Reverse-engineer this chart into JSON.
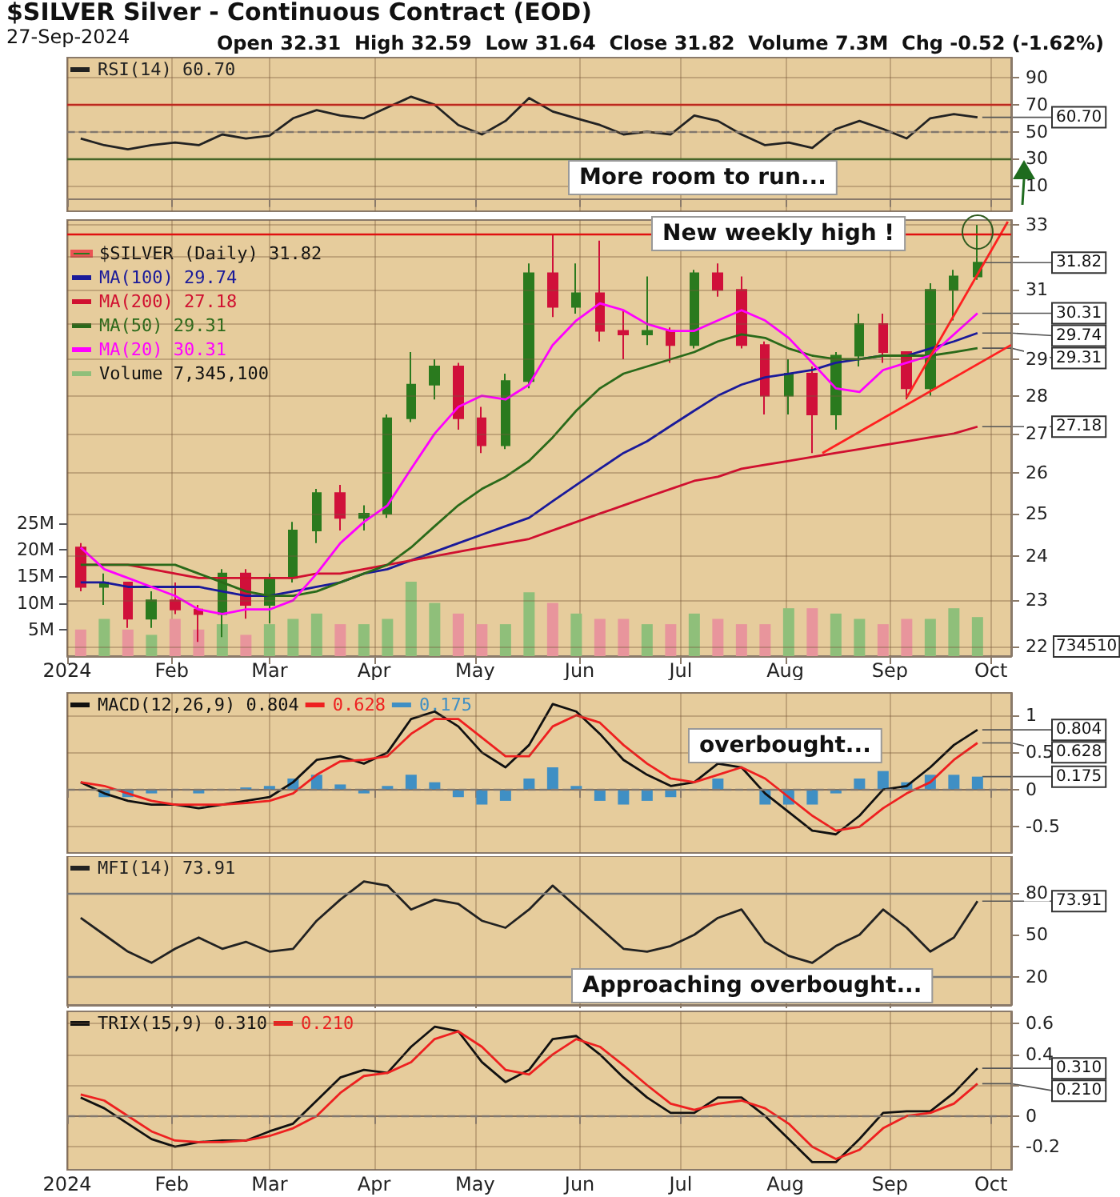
{
  "chart_data": [
    {
      "type": "line",
      "title": "$SILVER Silver - Continuous Contract (EOD)",
      "subtitle": "27-Sep-2024",
      "annotations": [
        "Open 32.31  High 32.59  Low 31.64  Close 31.82  Volume 7.3M  Chg -0.52 (-1.62%)",
        "More room to run...",
        {
          "text": "60.70",
          "x": "2024-09-27",
          "y": 60.7
        }
      ],
      "x": [
        "2024-01-05",
        "2024-01-12",
        "2024-01-19",
        "2024-01-26",
        "2024-02-02",
        "2024-02-09",
        "2024-02-16",
        "2024-02-23",
        "2024-03-01",
        "2024-03-08",
        "2024-03-15",
        "2024-03-22",
        "2024-03-29",
        "2024-04-05",
        "2024-04-12",
        "2024-04-19",
        "2024-04-26",
        "2024-05-03",
        "2024-05-10",
        "2024-05-17",
        "2024-05-24",
        "2024-05-31",
        "2024-06-07",
        "2024-06-14",
        "2024-06-21",
        "2024-06-28",
        "2024-07-05",
        "2024-07-12",
        "2024-07-19",
        "2024-07-26",
        "2024-08-02",
        "2024-08-09",
        "2024-08-16",
        "2024-08-23",
        "2024-08-30",
        "2024-09-06",
        "2024-09-13",
        "2024-09-20",
        "2024-09-27"
      ],
      "series": [
        {
          "name": "RSI(14) 60.70",
          "color": "#222222",
          "values": [
            45,
            40,
            37,
            40,
            42,
            40,
            48,
            45,
            47,
            60,
            66,
            62,
            60,
            68,
            76,
            70,
            55,
            48,
            58,
            75,
            65,
            60,
            55,
            48,
            50,
            48,
            62,
            58,
            48,
            40,
            42,
            38,
            52,
            58,
            52,
            45,
            60,
            63,
            60.7
          ]
        }
      ],
      "xlim": [
        "2024-01-01",
        "2024-10-07"
      ],
      "ylim": [
        -9,
        105
      ],
      "yticks": [
        10,
        30,
        50,
        70,
        90
      ],
      "xticks": [
        {
          "value": "2024-01-01",
          "label": null
        },
        {
          "value": "2024-02-01",
          "label": null
        },
        {
          "value": "2024-03-01",
          "label": null
        },
        {
          "value": "2024-04-01",
          "label": null
        },
        {
          "value": "2024-05-01",
          "label": null
        },
        {
          "value": "2024-06-01",
          "label": null
        },
        {
          "value": "2024-07-01",
          "label": null
        },
        {
          "value": "2024-08-01",
          "label": null
        },
        {
          "value": "2024-09-01",
          "label": null
        },
        {
          "value": "2024-10-01",
          "label": null
        }
      ],
      "ref_lines": [
        {
          "axis": "y",
          "value": 70,
          "color": "#e01010",
          "line_style": "solid"
        },
        {
          "axis": "y",
          "value": 50,
          "color": "#888888",
          "line_style": "dashed"
        },
        {
          "axis": "y",
          "value": 30,
          "color": "#2e6b1e",
          "line_style": "solid"
        }
      ],
      "grid": true,
      "legend": "top left",
      "tick_labels": "y"
    },
    {
      "type": "candlestick",
      "annotations": [
        "New weekly high !",
        "734510",
        {
          "text": "31.82",
          "x": "2024-09-27",
          "y": 31.82
        },
        {
          "text": "30.31",
          "x": "2024-09-27",
          "y": 30.31
        },
        {
          "text": "29.74",
          "x": "2024-09-27",
          "y": 29.74
        },
        {
          "text": "29.31",
          "x": "2024-09-27",
          "y": 29.31
        },
        {
          "text": "27.18",
          "x": "2024-09-27",
          "y": 27.18
        }
      ],
      "x": [
        "2024-01-05",
        "2024-01-12",
        "2024-01-19",
        "2024-01-26",
        "2024-02-02",
        "2024-02-09",
        "2024-02-16",
        "2024-02-23",
        "2024-03-01",
        "2024-03-08",
        "2024-03-15",
        "2024-03-22",
        "2024-03-29",
        "2024-04-05",
        "2024-04-12",
        "2024-04-19",
        "2024-04-26",
        "2024-05-03",
        "2024-05-10",
        "2024-05-17",
        "2024-05-24",
        "2024-05-31",
        "2024-06-07",
        "2024-06-14",
        "2024-06-21",
        "2024-06-28",
        "2024-07-05",
        "2024-07-12",
        "2024-07-19",
        "2024-07-26",
        "2024-08-02",
        "2024-08-09",
        "2024-08-16",
        "2024-08-23",
        "2024-08-30",
        "2024-09-06",
        "2024-09-13",
        "2024-09-20",
        "2024-09-27"
      ],
      "series": [
        {
          "name": "$SILVER (Daily) 31.82",
          "type": "candlestick",
          "ohlc": [
            [
              24.2,
              24.3,
              23.2,
              23.3
            ],
            [
              23.3,
              23.6,
              22.9,
              23.4
            ],
            [
              23.4,
              23.4,
              22.4,
              22.6
            ],
            [
              22.6,
              23.2,
              22.4,
              23.0
            ],
            [
              23.0,
              23.4,
              22.7,
              22.8
            ],
            [
              22.8,
              22.9,
              22.1,
              22.7
            ],
            [
              22.7,
              23.7,
              22.2,
              23.6
            ],
            [
              23.6,
              23.7,
              22.6,
              22.9
            ],
            [
              22.9,
              23.6,
              22.5,
              23.5
            ],
            [
              23.5,
              24.8,
              23.4,
              24.6
            ],
            [
              24.6,
              25.6,
              24.3,
              25.5
            ],
            [
              25.5,
              25.7,
              24.6,
              24.9
            ],
            [
              24.9,
              25.2,
              24.6,
              25.0
            ],
            [
              25.0,
              27.5,
              24.9,
              27.4
            ],
            [
              27.4,
              29.2,
              27.3,
              28.3
            ],
            [
              28.3,
              29.0,
              27.9,
              28.8
            ],
            [
              28.8,
              28.9,
              27.1,
              27.4
            ],
            [
              27.4,
              27.7,
              26.5,
              26.7
            ],
            [
              26.7,
              28.6,
              26.6,
              28.4
            ],
            [
              28.4,
              31.8,
              28.2,
              31.5
            ],
            [
              31.5,
              32.7,
              30.2,
              30.5
            ],
            [
              30.5,
              31.8,
              30.3,
              30.9
            ],
            [
              30.9,
              32.5,
              29.5,
              29.8
            ],
            [
              29.8,
              30.4,
              29.0,
              29.7
            ],
            [
              29.7,
              31.4,
              29.4,
              29.8
            ],
            [
              29.8,
              29.9,
              28.9,
              29.4
            ],
            [
              29.4,
              31.6,
              29.3,
              31.5
            ],
            [
              31.5,
              31.8,
              30.8,
              31.0
            ],
            [
              31.0,
              31.4,
              29.3,
              29.4
            ],
            [
              29.4,
              29.5,
              27.5,
              28.0
            ],
            [
              28.0,
              29.0,
              27.5,
              28.6
            ],
            [
              28.6,
              28.8,
              26.5,
              27.5
            ],
            [
              27.5,
              29.2,
              27.1,
              29.1
            ],
            [
              29.1,
              30.3,
              28.8,
              30.0
            ],
            [
              30.0,
              30.3,
              28.9,
              29.2
            ],
            [
              29.2,
              29.2,
              27.9,
              28.2
            ],
            [
              28.2,
              31.2,
              28.0,
              31.0
            ],
            [
              31.0,
              31.6,
              30.1,
              31.4
            ],
            [
              31.4,
              33.0,
              31.3,
              31.82
            ]
          ],
          "colors": [
            "#d0103a",
            "#2a7a1e",
            "#d0103a",
            "#2a7a1e",
            "#d0103a",
            "#d0103a",
            "#2a7a1e",
            "#d0103a",
            "#2a7a1e",
            "#2a7a1e",
            "#2a7a1e",
            "#d0103a",
            "#2a7a1e",
            "#2a7a1e",
            "#2a7a1e",
            "#2a7a1e",
            "#d0103a",
            "#d0103a",
            "#2a7a1e",
            "#2a7a1e",
            "#d0103a",
            "#2a7a1e",
            "#d0103a",
            "#d0103a",
            "#2a7a1e",
            "#d0103a",
            "#2a7a1e",
            "#d0103a",
            "#d0103a",
            "#d0103a",
            "#2a7a1e",
            "#d0103a",
            "#2a7a1e",
            "#2a7a1e",
            "#d0103a",
            "#d0103a",
            "#2a7a1e",
            "#2a7a1e",
            "#2a7a1e"
          ]
        },
        {
          "name": "MA(100) 29.74",
          "type": "line",
          "color": "#1a1a9a",
          "values": [
            23.4,
            23.4,
            23.3,
            23.3,
            23.3,
            23.3,
            23.2,
            23.1,
            23.1,
            23.2,
            23.3,
            23.4,
            23.6,
            23.7,
            23.9,
            24.1,
            24.3,
            24.5,
            24.7,
            24.9,
            25.3,
            25.7,
            26.1,
            26.5,
            26.8,
            27.2,
            27.6,
            28.0,
            28.3,
            28.5,
            28.6,
            28.7,
            28.9,
            29.0,
            29.1,
            29.1,
            29.3,
            29.5,
            29.74
          ]
        },
        {
          "name": "MA(200) 27.18",
          "type": "line",
          "color": "#d01030",
          "values": [
            23.8,
            23.8,
            23.8,
            23.7,
            23.6,
            23.5,
            23.5,
            23.5,
            23.5,
            23.5,
            23.6,
            23.6,
            23.7,
            23.8,
            23.9,
            24.0,
            24.1,
            24.2,
            24.3,
            24.4,
            24.6,
            24.8,
            25.0,
            25.2,
            25.4,
            25.6,
            25.8,
            25.9,
            26.1,
            26.2,
            26.3,
            26.4,
            26.5,
            26.6,
            26.7,
            26.8,
            26.9,
            27.0,
            27.18
          ]
        },
        {
          "name": "MA(50) 29.31",
          "type": "line",
          "color": "#2a6a1a",
          "values": [
            23.8,
            23.8,
            23.8,
            23.8,
            23.8,
            23.6,
            23.4,
            23.2,
            23.1,
            23.1,
            23.2,
            23.4,
            23.6,
            23.8,
            24.2,
            24.7,
            25.2,
            25.6,
            25.9,
            26.3,
            26.9,
            27.6,
            28.2,
            28.6,
            28.8,
            29.0,
            29.2,
            29.5,
            29.7,
            29.6,
            29.3,
            29.1,
            29.0,
            29.0,
            29.1,
            29.1,
            29.1,
            29.2,
            29.31
          ]
        },
        {
          "name": "MA(20) 30.31",
          "type": "line",
          "color": "#ff00ff",
          "values": [
            24.2,
            23.7,
            23.5,
            23.3,
            23.1,
            22.8,
            22.7,
            22.8,
            22.8,
            23.0,
            23.6,
            24.3,
            24.8,
            25.2,
            26.1,
            27.0,
            27.7,
            28.0,
            27.9,
            28.3,
            29.4,
            30.1,
            30.6,
            30.4,
            30.0,
            29.8,
            29.8,
            30.1,
            30.4,
            30.1,
            29.6,
            28.9,
            28.2,
            28.1,
            28.7,
            28.9,
            29.1,
            29.7,
            30.31
          ]
        },
        {
          "name": "Volume 7,345,100",
          "type": "bar",
          "axis": "y2",
          "values": [
            5,
            7,
            5,
            4,
            7,
            5,
            6,
            4,
            6,
            7,
            8,
            6,
            6,
            7,
            14,
            10,
            8,
            6,
            6,
            12,
            10,
            8,
            7,
            7,
            6,
            6,
            8,
            7,
            6,
            6,
            9,
            9,
            8,
            7,
            6,
            7,
            7,
            9,
            7.3451
          ],
          "colors": [
            "#e8959c",
            "#8fbf7a",
            "#e8959c",
            "#8fbf7a",
            "#e8959c",
            "#e8959c",
            "#8fbf7a",
            "#e8959c",
            "#8fbf7a",
            "#8fbf7a",
            "#8fbf7a",
            "#e8959c",
            "#8fbf7a",
            "#8fbf7a",
            "#8fbf7a",
            "#8fbf7a",
            "#e8959c",
            "#e8959c",
            "#8fbf7a",
            "#8fbf7a",
            "#e8959c",
            "#8fbf7a",
            "#e8959c",
            "#e8959c",
            "#8fbf7a",
            "#e8959c",
            "#8fbf7a",
            "#e8959c",
            "#e8959c",
            "#e8959c",
            "#8fbf7a",
            "#e8959c",
            "#8fbf7a",
            "#8fbf7a",
            "#e8959c",
            "#e8959c",
            "#8fbf7a",
            "#8fbf7a",
            "#8fbf7a"
          ]
        },
        {
          "type": "line",
          "color": "#ff2020",
          "x": [
            "2024-08-12",
            "2024-10-07"
          ],
          "values": [
            26.5,
            29.4
          ]
        },
        {
          "type": "line",
          "color": "#ff2020",
          "x": [
            "2024-09-06",
            "2024-10-06"
          ],
          "values": [
            27.95,
            33.1
          ]
        }
      ],
      "xlim": [
        "2024-01-01",
        "2024-10-07"
      ],
      "ylim": [
        21.8,
        33.15
      ],
      "log": "y",
      "yticks": [
        22,
        23,
        24,
        25,
        26,
        27,
        28,
        29,
        {
          "value": 30,
          "label": null
        },
        31,
        {
          "value": 32,
          "label": null
        },
        33
      ],
      "xticks": [
        {
          "value": "2024-01-01",
          "label": "2024"
        },
        {
          "value": "2024-02-01",
          "label": "Feb"
        },
        {
          "value": "2024-03-01",
          "label": "Mar"
        },
        {
          "value": "2024-04-01",
          "label": "Apr"
        },
        {
          "value": "2024-05-01",
          "label": "May"
        },
        {
          "value": "2024-06-01",
          "label": "Jun"
        },
        {
          "value": "2024-07-01",
          "label": "Jul"
        },
        {
          "value": "2024-08-01",
          "label": "Aug"
        },
        {
          "value": "2024-09-01",
          "label": "Sep"
        },
        {
          "value": "2024-10-01",
          "label": "Oct"
        }
      ],
      "y2lim": [
        0,
        82
      ],
      "y2ticks": [
        {
          "value": 5,
          "label": "5M"
        },
        {
          "value": 10,
          "label": "10M"
        },
        {
          "value": 15,
          "label": "15M"
        },
        {
          "value": 20,
          "label": "20M"
        },
        {
          "value": 25,
          "label": "25M"
        }
      ],
      "ref_lines": [
        {
          "axis": "y",
          "value": 32.7,
          "color": "#e01010",
          "line_style": "solid"
        }
      ],
      "grid": true,
      "legend": "top left"
    },
    {
      "type": "line",
      "annotations": [
        "overbought...",
        {
          "text": "0.804",
          "x": "2024-09-27",
          "y": 0.804
        },
        {
          "text": "0.628",
          "x": "2024-09-27",
          "y": 0.628
        },
        {
          "text": "0.175",
          "x": "2024-09-27",
          "y": 0.175
        }
      ],
      "x": [
        "2024-01-05",
        "2024-01-12",
        "2024-01-19",
        "2024-01-26",
        "2024-02-02",
        "2024-02-09",
        "2024-02-16",
        "2024-02-23",
        "2024-03-01",
        "2024-03-08",
        "2024-03-15",
        "2024-03-22",
        "2024-03-29",
        "2024-04-05",
        "2024-04-12",
        "2024-04-19",
        "2024-04-26",
        "2024-05-03",
        "2024-05-10",
        "2024-05-17",
        "2024-05-24",
        "2024-05-31",
        "2024-06-07",
        "2024-06-14",
        "2024-06-21",
        "2024-06-28",
        "2024-07-05",
        "2024-07-12",
        "2024-07-19",
        "2024-07-26",
        "2024-08-02",
        "2024-08-09",
        "2024-08-16",
        "2024-08-23",
        "2024-08-30",
        "2024-09-06",
        "2024-09-13",
        "2024-09-20",
        "2024-09-27"
      ],
      "series": [
        {
          "name": "MACD(12,26,9) 0.804",
          "color": "#111111",
          "values": [
            0.1,
            -0.05,
            -0.15,
            -0.2,
            -0.2,
            -0.25,
            -0.2,
            -0.15,
            -0.1,
            0.1,
            0.4,
            0.45,
            0.35,
            0.5,
            0.95,
            1.05,
            0.85,
            0.5,
            0.3,
            0.6,
            1.15,
            1.05,
            0.75,
            0.4,
            0.2,
            0.05,
            0.1,
            0.35,
            0.3,
            -0.05,
            -0.3,
            -0.55,
            -0.6,
            -0.35,
            0.0,
            0.05,
            0.3,
            0.6,
            0.804
          ]
        },
        {
          "name": "0.628",
          "color": "#ee2020",
          "values": [
            0.1,
            0.05,
            -0.05,
            -0.15,
            -0.2,
            -0.2,
            -0.2,
            -0.18,
            -0.15,
            -0.05,
            0.2,
            0.38,
            0.4,
            0.45,
            0.75,
            0.95,
            0.95,
            0.7,
            0.45,
            0.45,
            0.85,
            1.0,
            0.9,
            0.6,
            0.35,
            0.15,
            0.1,
            0.2,
            0.3,
            0.15,
            -0.1,
            -0.35,
            -0.55,
            -0.5,
            -0.25,
            -0.05,
            0.1,
            0.4,
            0.628
          ]
        },
        {
          "name": "0.175",
          "type": "bar",
          "color": "#3f8fc4",
          "values": [
            0,
            -0.1,
            -0.1,
            -0.05,
            0,
            -0.05,
            0,
            0.03,
            0.05,
            0.15,
            0.2,
            0.07,
            -0.05,
            0.05,
            0.2,
            0.1,
            -0.1,
            -0.2,
            -0.15,
            0.15,
            0.3,
            0.05,
            -0.15,
            -0.2,
            -0.15,
            -0.1,
            0,
            0.15,
            0,
            -0.2,
            -0.2,
            -0.2,
            -0.05,
            0.15,
            0.25,
            0.1,
            0.2,
            0.2,
            0.175
          ]
        }
      ],
      "xlim": [
        "2024-01-01",
        "2024-10-07"
      ],
      "ylim": [
        -0.85,
        1.3
      ],
      "yticks": [
        -0.5,
        0.0,
        0.5,
        1.0
      ],
      "xticks": [
        {
          "value": "2024-01-01",
          "label": null
        },
        {
          "value": "2024-02-01",
          "label": null
        },
        {
          "value": "2024-03-01",
          "label": null
        },
        {
          "value": "2024-04-01",
          "label": null
        },
        {
          "value": "2024-05-01",
          "label": null
        },
        {
          "value": "2024-06-01",
          "label": null
        },
        {
          "value": "2024-07-01",
          "label": null
        },
        {
          "value": "2024-08-01",
          "label": null
        },
        {
          "value": "2024-09-01",
          "label": null
        },
        {
          "value": "2024-10-01",
          "label": null
        }
      ],
      "ref_lines": [
        {
          "axis": "y",
          "value": 0,
          "color": "#888888",
          "line_style": "dashed"
        }
      ],
      "grid": true,
      "legend": "top left",
      "tick_labels": "y"
    },
    {
      "type": "line",
      "annotations": [
        "Approaching overbought...",
        {
          "text": "73.91",
          "x": "2024-09-27",
          "y": 73.91
        }
      ],
      "x": [
        "2024-01-05",
        "2024-01-12",
        "2024-01-19",
        "2024-01-26",
        "2024-02-02",
        "2024-02-09",
        "2024-02-16",
        "2024-02-23",
        "2024-03-01",
        "2024-03-08",
        "2024-03-15",
        "2024-03-22",
        "2024-03-29",
        "2024-04-05",
        "2024-04-12",
        "2024-04-19",
        "2024-04-26",
        "2024-05-03",
        "2024-05-10",
        "2024-05-17",
        "2024-05-24",
        "2024-05-31",
        "2024-06-07",
        "2024-06-14",
        "2024-06-21",
        "2024-06-28",
        "2024-07-05",
        "2024-07-12",
        "2024-07-19",
        "2024-07-26",
        "2024-08-02",
        "2024-08-09",
        "2024-08-16",
        "2024-08-23",
        "2024-08-30",
        "2024-09-06",
        "2024-09-13",
        "2024-09-20",
        "2024-09-27"
      ],
      "series": [
        {
          "name": "MFI(14) 73.91",
          "color": "#222222",
          "values": [
            62,
            50,
            38,
            30,
            40,
            48,
            40,
            45,
            38,
            40,
            60,
            75,
            88,
            85,
            68,
            75,
            72,
            60,
            55,
            68,
            85,
            70,
            55,
            40,
            38,
            42,
            50,
            62,
            68,
            45,
            35,
            30,
            42,
            50,
            68,
            55,
            38,
            48,
            73.91
          ]
        }
      ],
      "xlim": [
        "2024-01-01",
        "2024-10-07"
      ],
      "ylim": [
        0,
        106
      ],
      "yticks": [
        20,
        50,
        80
      ],
      "xticks": [
        {
          "value": "2024-01-01",
          "label": null
        },
        {
          "value": "2024-02-01",
          "label": null
        },
        {
          "value": "2024-03-01",
          "label": null
        },
        {
          "value": "2024-04-01",
          "label": null
        },
        {
          "value": "2024-05-01",
          "label": null
        },
        {
          "value": "2024-06-01",
          "label": null
        },
        {
          "value": "2024-07-01",
          "label": null
        },
        {
          "value": "2024-08-01",
          "label": null
        },
        {
          "value": "2024-09-01",
          "label": null
        },
        {
          "value": "2024-10-01",
          "label": null
        }
      ],
      "ref_lines": [
        {
          "axis": "y",
          "value": 80,
          "color": "#777777",
          "line_style": "solid"
        },
        {
          "axis": "y",
          "value": 20,
          "color": "#777777",
          "line_style": "solid"
        }
      ],
      "grid": "x",
      "legend": "top left",
      "tick_labels": "y"
    },
    {
      "type": "line",
      "annotations": [
        {
          "text": "0.310",
          "x": "2024-09-27",
          "y": 0.31
        },
        {
          "text": "0.210",
          "x": "2024-09-27",
          "y": 0.21
        }
      ],
      "x": [
        "2024-01-05",
        "2024-01-12",
        "2024-01-19",
        "2024-01-26",
        "2024-02-02",
        "2024-02-09",
        "2024-02-16",
        "2024-02-23",
        "2024-03-01",
        "2024-03-08",
        "2024-03-15",
        "2024-03-22",
        "2024-03-29",
        "2024-04-05",
        "2024-04-12",
        "2024-04-19",
        "2024-04-26",
        "2024-05-03",
        "2024-05-10",
        "2024-05-17",
        "2024-05-24",
        "2024-05-31",
        "2024-06-07",
        "2024-06-14",
        "2024-06-21",
        "2024-06-28",
        "2024-07-05",
        "2024-07-12",
        "2024-07-19",
        "2024-07-26",
        "2024-08-02",
        "2024-08-09",
        "2024-08-16",
        "2024-08-23",
        "2024-08-30",
        "2024-09-06",
        "2024-09-13",
        "2024-09-20",
        "2024-09-27"
      ],
      "series": [
        {
          "name": "TRIX(15,9) 0.310",
          "color": "#111111",
          "values": [
            0.12,
            0.05,
            -0.05,
            -0.15,
            -0.2,
            -0.17,
            -0.16,
            -0.16,
            -0.1,
            -0.05,
            0.1,
            0.25,
            0.3,
            0.28,
            0.45,
            0.58,
            0.55,
            0.35,
            0.22,
            0.3,
            0.5,
            0.52,
            0.4,
            0.25,
            0.12,
            0.02,
            0.02,
            0.12,
            0.12,
            0.0,
            -0.15,
            -0.3,
            -0.3,
            -0.15,
            0.02,
            0.03,
            0.03,
            0.15,
            0.31
          ]
        },
        {
          "name": "0.210",
          "color": "#ee2020",
          "values": [
            0.14,
            0.1,
            0.0,
            -0.1,
            -0.16,
            -0.17,
            -0.17,
            -0.16,
            -0.13,
            -0.08,
            0.0,
            0.15,
            0.26,
            0.28,
            0.35,
            0.5,
            0.55,
            0.45,
            0.3,
            0.27,
            0.4,
            0.5,
            0.45,
            0.33,
            0.2,
            0.08,
            0.04,
            0.08,
            0.1,
            0.05,
            -0.05,
            -0.2,
            -0.28,
            -0.22,
            -0.08,
            0.0,
            0.02,
            0.08,
            0.21
          ]
        }
      ],
      "xlim": [
        "2024-01-01",
        "2024-10-07"
      ],
      "ylim": [
        -0.35,
        0.68
      ],
      "yticks": [
        -0.2,
        0.0,
        {
          "value": 0.2,
          "label": null
        },
        0.4,
        0.6
      ],
      "xticks": [
        {
          "value": "2024-01-01",
          "label": "2024"
        },
        {
          "value": "2024-02-01",
          "label": "Feb"
        },
        {
          "value": "2024-03-01",
          "label": "Mar"
        },
        {
          "value": "2024-04-01",
          "label": "Apr"
        },
        {
          "value": "2024-05-01",
          "label": "May"
        },
        {
          "value": "2024-06-01",
          "label": "Jun"
        },
        {
          "value": "2024-07-01",
          "label": "Jul"
        },
        {
          "value": "2024-08-01",
          "label": "Aug"
        },
        {
          "value": "2024-09-01",
          "label": "Sep"
        },
        {
          "value": "2024-10-01",
          "label": "Oct"
        }
      ],
      "ref_lines": [
        {
          "axis": "y",
          "value": 0,
          "color": "#888888",
          "line_style": "dashed"
        }
      ],
      "grid": true,
      "legend": "top left"
    }
  ]
}
